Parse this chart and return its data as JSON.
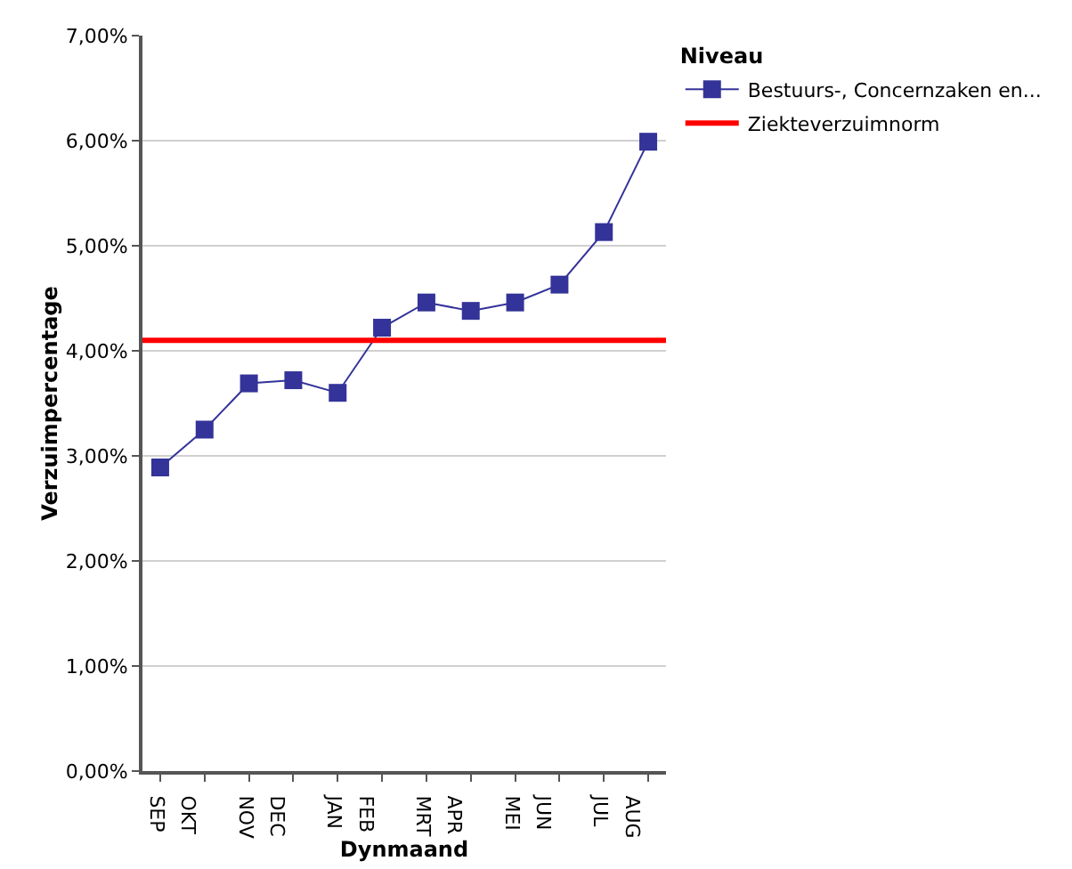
{
  "chart_data": {
    "type": "line",
    "xlabel": "Dynmaand",
    "ylabel": "Verzuimpercentage",
    "legend_title": "Niveau",
    "categories": [
      "SEP",
      "OKT",
      "NOV",
      "DEC",
      "JAN",
      "FEB",
      "MRT",
      "APR",
      "MEI",
      "JUN",
      "JUL",
      "AUG"
    ],
    "series": [
      {
        "name": "Bestuurs-, Concernzaken en...",
        "color": "#333399",
        "values": [
          2.89,
          3.25,
          3.69,
          3.72,
          3.6,
          4.22,
          4.46,
          4.38,
          4.46,
          4.63,
          5.13,
          5.99
        ]
      }
    ],
    "ref_lines": [
      {
        "axis": "y",
        "value": 4.1,
        "label": "Ziekteverzuimnorm",
        "color": "#ff0000",
        "line_style": "solid"
      }
    ],
    "ylim": [
      0,
      7
    ],
    "yticks": [
      {
        "value": 0,
        "label": "0,00%"
      },
      {
        "value": 1,
        "label": "1,00%"
      },
      {
        "value": 2,
        "label": "2,00%"
      },
      {
        "value": 3,
        "label": "3,00%"
      },
      {
        "value": 4,
        "label": "4,00%"
      },
      {
        "value": 5,
        "label": "5,00%"
      },
      {
        "value": 6,
        "label": "6,00%"
      },
      {
        "value": 7,
        "label": "7,00%"
      }
    ],
    "grid": "y",
    "legend": "top right",
    "marker": "square",
    "line_style": "solid"
  }
}
